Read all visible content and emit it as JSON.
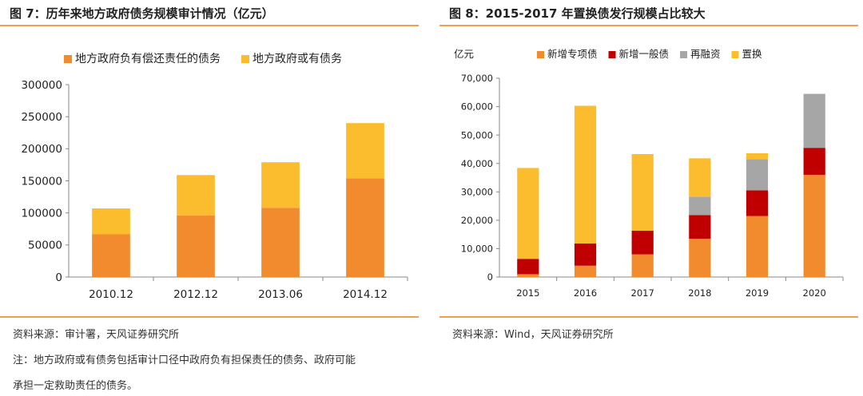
{
  "left": {
    "title": "图 7：历年来地方政府债务规模审计情况（亿元）",
    "source": "资料来源：审计署，天风证券研究所",
    "note_line1": "注：地方政府或有债务包括审计口径中政府负有担保责任的债务、政府可能",
    "note_line2": "承担一定救助责任的债务。"
  },
  "right": {
    "title": "图 8：2015-2017 年置换债发行规模占比较大",
    "source": "资料来源：Wind，天风证券研究所"
  },
  "colors": {
    "orange": "#f28a2e",
    "yellow": "#fbbd2d",
    "red": "#c00000",
    "gray": "#a6a6a6",
    "accent_rule": "#f0a050"
  },
  "chart_data": [
    {
      "type": "bar",
      "stacked": true,
      "title": "历年来地方政府债务规模审计情况（亿元）",
      "categories": [
        "2010.12",
        "2012.12",
        "2013.06",
        "2014.12"
      ],
      "series": [
        {
          "name": "地方政府负有偿还责任的债务",
          "values": [
            67000,
            96000,
            108000,
            154000
          ],
          "color": "#f28a2e"
        },
        {
          "name": "地方政府或有债务",
          "values": [
            40000,
            63000,
            71000,
            86000
          ],
          "color": "#fbbd2d"
        }
      ],
      "ylim": [
        0,
        300000
      ],
      "yticks": [
        0,
        50000,
        100000,
        150000,
        200000,
        250000,
        300000
      ],
      "ytick_labels": [
        "0",
        "50000",
        "100000",
        "150000",
        "200000",
        "250000",
        "300000"
      ],
      "legend": "top"
    },
    {
      "type": "bar",
      "stacked": true,
      "title": "2015-2017 年置换债发行规模占比较大",
      "unit_label": "亿元",
      "categories": [
        "2015",
        "2016",
        "2017",
        "2018",
        "2019",
        "2020"
      ],
      "series": [
        {
          "name": "新增专项债",
          "values": [
            1000,
            4000,
            8000,
            13500,
            21500,
            36000
          ],
          "color": "#f28a2e"
        },
        {
          "name": "新增一般债",
          "values": [
            5400,
            7800,
            8300,
            8300,
            9000,
            9500
          ],
          "color": "#c00000"
        },
        {
          "name": "再融资",
          "values": [
            0,
            0,
            0,
            6500,
            11000,
            19000
          ],
          "color": "#a6a6a6"
        },
        {
          "name": "置换",
          "values": [
            32000,
            48500,
            27000,
            13500,
            2100,
            0
          ],
          "color": "#fbbd2d"
        }
      ],
      "ylim": [
        0,
        70000
      ],
      "yticks": [
        0,
        10000,
        20000,
        30000,
        40000,
        50000,
        60000,
        70000
      ],
      "ytick_labels": [
        "0",
        "10,000",
        "20,000",
        "30,000",
        "40,000",
        "50,000",
        "60,000",
        "70,000"
      ],
      "legend": "top"
    }
  ]
}
